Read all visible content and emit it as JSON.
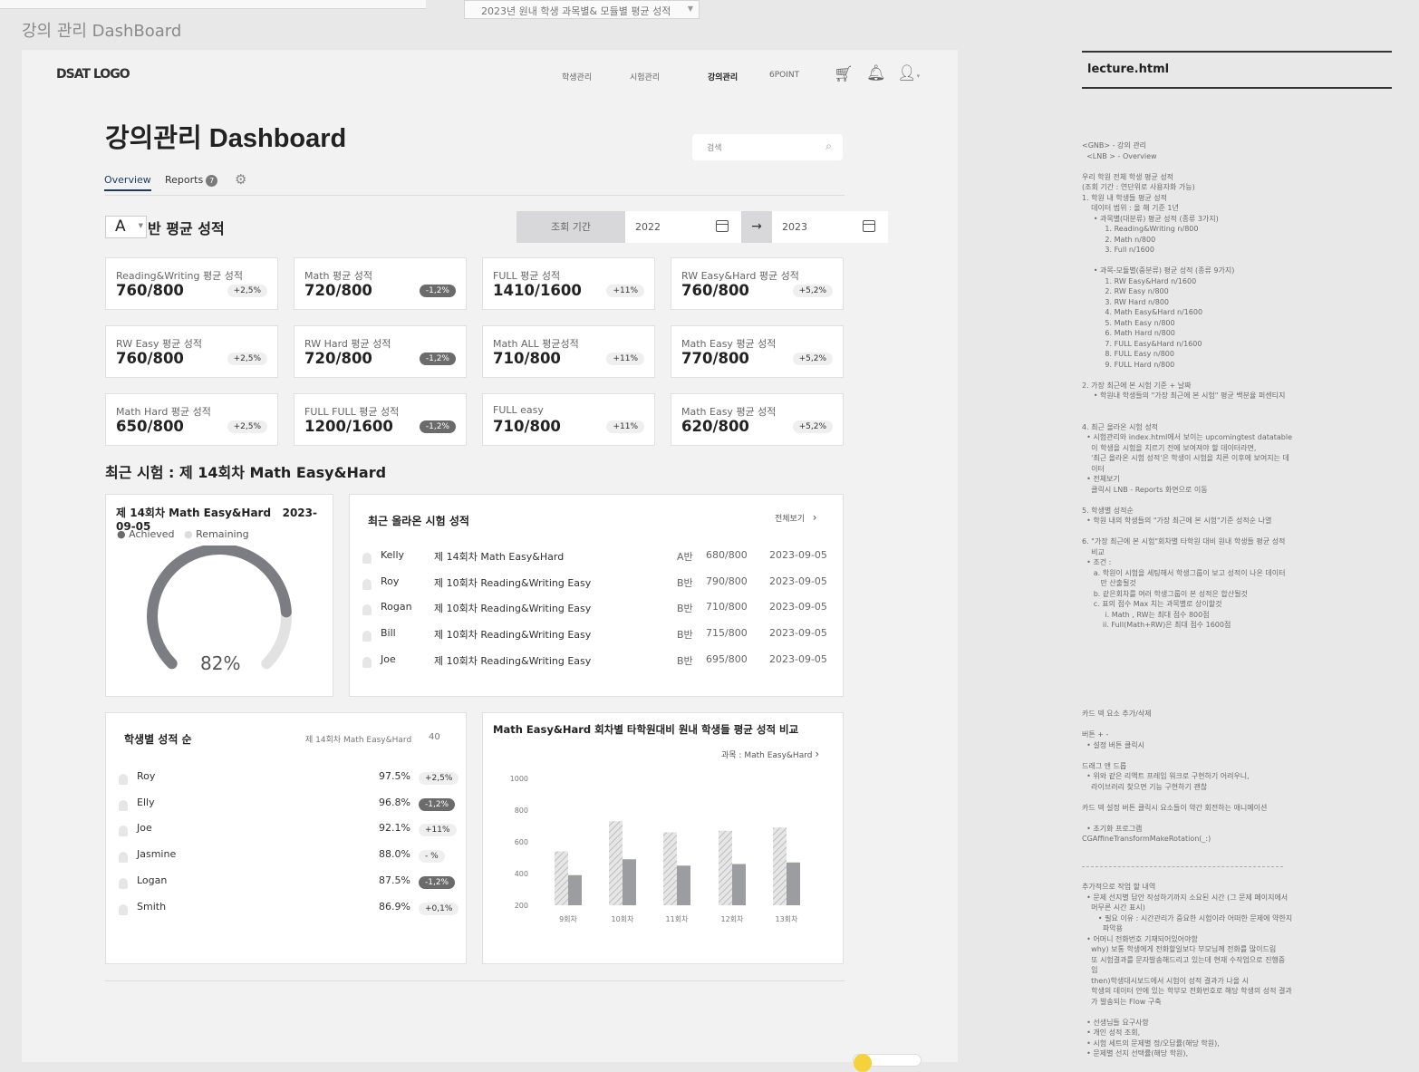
{
  "top": {
    "select_label": "2023년 원내 학생 과목별& 모듈별 평균 성적",
    "frame_title": "강의 관리 DashBoard"
  },
  "gnb": {
    "logo": "DSAT LOGO",
    "items": [
      "학생관리",
      "시험관리",
      "강의관리",
      "6POINT"
    ]
  },
  "page": {
    "title": "강의관리 Dashboard",
    "search_placeholder": "검색"
  },
  "tabs": {
    "overview": "Overview",
    "reports": "Reports",
    "reports_badge": "7"
  },
  "class_avg": {
    "class_value": "A",
    "title": "반 평균 성적",
    "period_label": "조회 기간",
    "from": "2022",
    "to": "2023"
  },
  "cards": [
    {
      "title": "Reading&Writing 평균 성적",
      "value": "760/800",
      "delta": "+2,5%",
      "dark": false
    },
    {
      "title": "Math 평균 성적",
      "value": "720/800",
      "delta": "-1,2%",
      "dark": true
    },
    {
      "title": "FULL 평균 성적",
      "value": "1410/1600",
      "delta": "+11%",
      "dark": false
    },
    {
      "title": "RW Easy&Hard 평균 성적",
      "value": "760/800",
      "delta": "+5,2%",
      "dark": false
    },
    {
      "title": "RW Easy 평균 성적",
      "value": "760/800",
      "delta": "+2,5%",
      "dark": false
    },
    {
      "title": "RW Hard 평균 성적",
      "value": "720/800",
      "delta": "-1,2%",
      "dark": true
    },
    {
      "title": "Math ALL 평균성적",
      "value": "710/800",
      "delta": "+11%",
      "dark": false
    },
    {
      "title": "Math Easy 평균 성적",
      "value": "770/800",
      "delta": "+5,2%",
      "dark": false
    },
    {
      "title": "Math  Hard 평균 성적",
      "value": "650/800",
      "delta": "+2,5%",
      "dark": false
    },
    {
      "title": "FULL FULL 평균 성적",
      "value": "1200/1600",
      "delta": "-1,2%",
      "dark": true
    },
    {
      "title": "FULL easy",
      "value": "710/800",
      "delta": "+11%",
      "dark": false
    },
    {
      "title": "Math Easy 평균 성적",
      "value": "620/800",
      "delta": "+5,2%",
      "dark": false
    }
  ],
  "recent": {
    "heading": "최근 시험 : 제 14회차 Math Easy&Hard",
    "gauge": {
      "title": "제 14회차 Math Easy&Hard",
      "date": "2023-09-05",
      "legend_achieved": "Achieved",
      "legend_remaining": "Remaining",
      "value": 82,
      "label": "82%"
    },
    "table": {
      "title": "최근 올라온 시험 성적",
      "view_all": "전체보기",
      "rows": [
        {
          "name": "Kelly",
          "exam": "제 14회차 Math Easy&Hard",
          "cls": "A반",
          "score": "680/800",
          "date": "2023-09-05"
        },
        {
          "name": "Roy",
          "exam": "제 10회차 Reading&Writing Easy",
          "cls": "B반",
          "score": "790/800",
          "date": "2023-09-05"
        },
        {
          "name": "Rogan",
          "exam": "제 10회차 Reading&Writing Easy",
          "cls": "B반",
          "score": "710/800",
          "date": "2023-09-05"
        },
        {
          "name": "Bill",
          "exam": "제 10회차 Reading&Writing Easy",
          "cls": "B반",
          "score": "715/800",
          "date": "2023-09-05"
        },
        {
          "name": "Joe",
          "exam": "제 10회차 Reading&Writing Easy",
          "cls": "B반",
          "score": "695/800",
          "date": "2023-09-05"
        }
      ]
    }
  },
  "ranking": {
    "title": "학생별 성적 순",
    "exam": "제 14회차 Math Easy&Hard",
    "count": "40",
    "rows": [
      {
        "name": "Roy",
        "pct": "97.5%",
        "delta": "+2,5%",
        "dark": false
      },
      {
        "name": "Elly",
        "pct": "96.8%",
        "delta": "-1,2%",
        "dark": true
      },
      {
        "name": "Joe",
        "pct": "92.1%",
        "delta": "+11%",
        "dark": false
      },
      {
        "name": "Jasmine",
        "pct": "88.0%",
        "delta": "- %",
        "dark": false
      },
      {
        "name": "Logan",
        "pct": "87.5%",
        "delta": "-1,2%",
        "dark": true
      },
      {
        "name": "Smith",
        "pct": "86.9%",
        "delta": "+0,1%",
        "dark": false
      }
    ]
  },
  "compare": {
    "title": "Math Easy&Hard 회차별 타학원대비 원내 학생들 평균 성적 비교",
    "subject": "과목 : Math Easy&Hard"
  },
  "chart_data": {
    "type": "bar",
    "categories": [
      "9회차",
      "10회차",
      "11회차",
      "12회차",
      "13회차"
    ],
    "series": [
      {
        "values": [
          540,
          730,
          660,
          670,
          690
        ]
      },
      {
        "values": [
          390,
          490,
          450,
          460,
          470
        ]
      }
    ],
    "yticks": [
      200,
      400,
      600,
      800,
      1000
    ],
    "ylim": [
      200,
      1000
    ]
  },
  "notes": {
    "file": "lecture.html",
    "text": "<GNB> - 강의 관리\n  <LNB > - Overview\n\n우리 학원 전체 학생 평균 성적\n(조회 기간 : 연단위로 사용자화 가능)\n1. 학원 내 학생들 평균 성적\n    데이터 범위 : 올 해 기준 1년\n     • 과목별(대분류) 평균 성적 (종류 3가지)\n          1. Reading&Writing n/800\n          2. Math n/800\n          3. Full n/1600\n\n     • 과목-모듈별(중분류) 평균 성적 (종류 9가지)\n          1. RW Easy&Hard n/1600\n          2. RW Easy n/800\n          3. RW Hard n/800\n          4. Math Easy&Hard n/1600\n          5. Math Easy n/800\n          6. Math Hard n/800\n          7. FULL Easy&Hard n/1600\n          8. FULL Easy n/800\n          9. FULL Hard n/800\n\n2. 가장 최근에 본 시험 기준 + 날짜\n     • 학원내 학생들의 \"가장 최근에 본 시험\" 평균 백분율 퍼센티지\n\n\n4. 최근 올라온 시험 성적\n  • 시험관리와 index.html에서 보이는 upcomingtest datatable\n    이 학생을 시험을 치르기 전에 보여져야 할 데이터라면,\n    '최근 올라온 시험 성적'은 학생이 시험을 치른 이후에 보여지는 데\n    이터\n  • 전체보기\n    클릭시 LNB - Reports 화면으로 이동\n\n5. 학생별 성적순\n  • 학원 내의 학생들의 \"가장 최근에 본 시험\"기준 성적순 나열\n\n6. \"가장 최근에 본 시험\"회차별 타학원 대비 원내 학생들 평균 성적\n    비교\n  • 조건 :\n     a. 학원이 시험을 세팅해서 학생그룹이 보고 성적이 나온 데이터\n        만 산출될것\n     b. 같은회차를 여러 학생그룹이 본 성적은 합산될것\n     c. 표의 점수 Max 치는 과목별로 상이할것\n          i. Math , RW는 최대 점수 800점\n         ii. Full(Math+RW)은 최대 점수 1600점",
    "text2": "카드 덱 요소 추가/삭제\n\n버튼 + -\n  • 설정 버튼 클릭시\n\n드래그 앤 드롭\n  • 위와 같은 리액트 프레임 워크로 구현하기 어려우니,\n    라이브러리 찾으면 기능 구현하기 괜찮\n\n카드 덱 설정 버튼 클릭시 요소들이 약간 회전하는 애니메이션\n\n  • 초기화 프로그램\nCGAffineTransformMakeRotation(_:)",
    "text3": "추가적으로 작업 할 내역\n  • 문제 선지별 답안 작성하기까지 소요된 시간 (그 문제 페이지에서\n    머무른 시간 표시)\n       • 필요 이유 : 시간관리가 중요한 시험이라 어떠한 문제에 약한지\n         파악용\n  • 어머니 전화번호 기재되어있어야함\n    why) 보통 학생에게 전화할일보다 부모님께 전화를 많이드림\n    또 시험결과를 문자발송해드리고 있는데 현재 수작업으로 진행중\n    임\n    then)학생대시보드에서 시험이 성적 결과가 나올 시\n    학생의 데이터 안에 있는 학부모 전화번호로 해당 학생의 성적 결과\n    가 발송되는 Flow 구축\n\n  • 선생님들 요구사항\n  • 개인 성적 조회,\n  • 시험 세트의 문제별 정/오답률(해당 학원),\n  • 문제별 선지 선택률(해당 학원),"
  }
}
